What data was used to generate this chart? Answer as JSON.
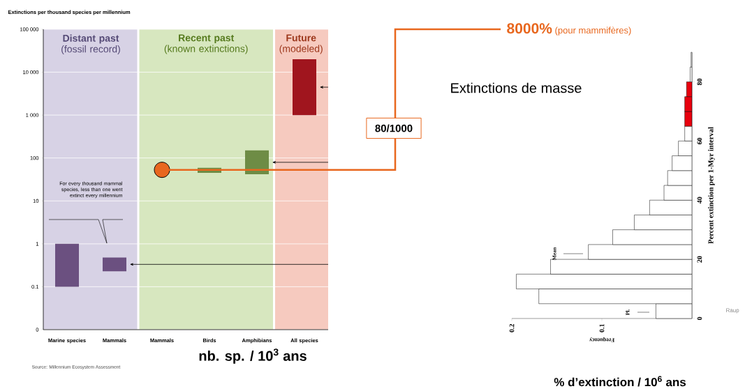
{
  "chart_data": [
    {
      "type": "bar",
      "ylabel": "Extinctions per thousand species per millennium",
      "categories": [
        "Marine species",
        "Mammals",
        "Mammals",
        "Birds",
        "Amphibians",
        "All species"
      ],
      "series": [
        {
          "type": "bar",
          "base": [
            0.1,
            0.23,
            null,
            45,
            42,
            1000
          ],
          "colors": [
            "#6b5080",
            "#6b5080",
            "#6e8c45",
            "#6e8c45",
            "#6e8c45",
            "#a0151e"
          ],
          "values": [
            0.9,
            0.25,
            null,
            14,
            108,
            19000
          ]
        },
        {
          "type": "scatter",
          "color": "#e8671e",
          "values": [
            null,
            null,
            53,
            null,
            null,
            null
          ]
        }
      ],
      "marker": "circle",
      "log": true,
      "grid": "y",
      "ylim": [
        0.01,
        100000
      ],
      "yticks": [
        {
          "value": 0.01,
          "label": "0"
        },
        0.1,
        1,
        10,
        100,
        {
          "value": 1000,
          "label": "1 000"
        },
        {
          "value": 10000,
          "label": "10 000"
        },
        {
          "value": 100000,
          "label": "100 000"
        }
      ],
      "annotations": [
        "**Distant past** (fossil record)",
        "**Recent past** (known extinctions)",
        "**Future** (modeled)",
        "For every thousand mammal species, less than one went extinct every millennium",
        "80/1000",
        "**8000%** (pour mammifères)",
        "nb. sp. / 10$^{3}$ ans",
        "Source: Millennium Ecosystem Assessment"
      ]
    },
    {
      "type": "histogram",
      "orientation": "horizontal",
      "title": "Extinctions de masse",
      "xlabel": "Frequency",
      "ylabel": "Percent extinction per 1-Myr interval",
      "bins": [
        0,
        5,
        10,
        15,
        20,
        25,
        30,
        35,
        40,
        45,
        50,
        55,
        60,
        65,
        70,
        75,
        80,
        85,
        90
      ],
      "values": [
        0.04,
        0.17,
        0.195,
        0.157,
        0.115,
        0.088,
        0.064,
        0.047,
        0.031,
        0.027,
        0.022,
        0.015,
        0.008,
        0.008,
        0.008,
        0.006,
        0.002,
        0.001
      ],
      "colors": [
        "#ffffff",
        "#ffffff",
        "#ffffff",
        "#ffffff",
        "#ffffff",
        "#ffffff",
        "#ffffff",
        "#ffffff",
        "#ffffff",
        "#ffffff",
        "#ffffff",
        "#ffffff",
        "#ffffff",
        "#e8000e",
        "#e8000e",
        "#e8000e",
        "#ffffff",
        "#ffffff"
      ],
      "xlim": [
        0.2,
        0
      ],
      "xticks": [
        0.2,
        0.1
      ],
      "ylim": [
        0,
        90
      ],
      "yticks": [
        0,
        20,
        40,
        60,
        80
      ],
      "annotations": [
        "Mean",
        "Pl.",
        "% d’extinction / 10$^{6}$ ans",
        "Raup"
      ]
    }
  ]
}
